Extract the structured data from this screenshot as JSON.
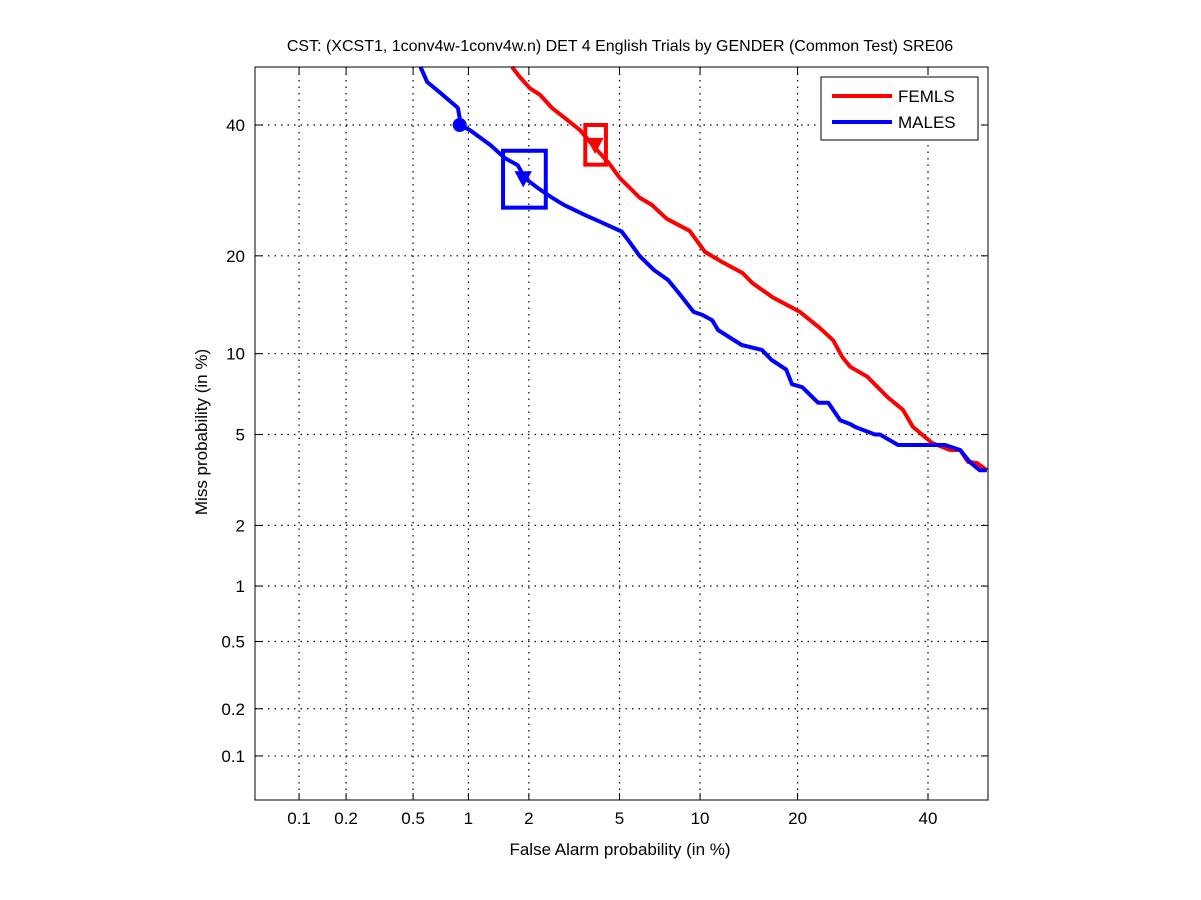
{
  "chart_data": {
    "type": "line",
    "scale": "probit (normal deviate)",
    "title": "CST: (XCST1, 1conv4w-1conv4w.n) DET 4 English Trials by GENDER (Common Test) SRE06",
    "xlabel": "False Alarm probability (in %)",
    "ylabel": "Miss probability (in %)",
    "xlim": [
      0.05,
      50.5
    ],
    "ylim": [
      0.05,
      50.3
    ],
    "grid": true,
    "legend_position": "top-right",
    "xticks": [
      0.1,
      0.2,
      0.5,
      1,
      2,
      5,
      10,
      20,
      40
    ],
    "xtick_labels": [
      "0.1",
      "0.2",
      "0.5",
      "1",
      "2",
      "5",
      "10",
      "20",
      "40"
    ],
    "yticks": [
      0.1,
      0.2,
      0.5,
      1,
      2,
      5,
      10,
      20,
      40
    ],
    "ytick_labels": [
      "0.1",
      "0.2",
      "0.5",
      "1",
      "2",
      "5",
      "10",
      "20",
      "40"
    ],
    "series": [
      {
        "name": "FEMLS",
        "color": "#ff0000",
        "points": [
          [
            1.66,
            50.3
          ],
          [
            1.81,
            48.5
          ],
          [
            2.02,
            46.5
          ],
          [
            2.26,
            45.3
          ],
          [
            2.56,
            43
          ],
          [
            2.93,
            41.2
          ],
          [
            3.42,
            39.1
          ],
          [
            3.96,
            36.1
          ],
          [
            4.49,
            33.7
          ],
          [
            5.03,
            31.1
          ],
          [
            5.6,
            29.3
          ],
          [
            6.0,
            28.1
          ],
          [
            6.7,
            27
          ],
          [
            7.6,
            25
          ],
          [
            9.2,
            23.3
          ],
          [
            10.4,
            20.5
          ],
          [
            11.9,
            19.2
          ],
          [
            13.8,
            17.9
          ],
          [
            14.8,
            16.75
          ],
          [
            17,
            15.2
          ],
          [
            20.3,
            13.7
          ],
          [
            22.9,
            12.2
          ],
          [
            24.8,
            11.1
          ],
          [
            26.1,
            9.75
          ],
          [
            27.3,
            9.0
          ],
          [
            29.9,
            8.3
          ],
          [
            33.1,
            7.0
          ],
          [
            35.7,
            6.25
          ],
          [
            37.4,
            5.36
          ],
          [
            40.7,
            4.62
          ],
          [
            43.9,
            4.32
          ],
          [
            45.7,
            4.32
          ],
          [
            47.1,
            3.85
          ],
          [
            48.7,
            3.81
          ],
          [
            50.5,
            3.55
          ]
        ],
        "actual_dcf_point": [
          3.96,
          36.6
        ],
        "confidence_box": {
          "fa": [
            3.6,
            4.4
          ],
          "miss": [
            33.3,
            40.0
          ]
        }
      },
      {
        "name": "MALES",
        "color": "#0000ff",
        "points": [
          [
            0.55,
            50.3
          ],
          [
            0.6,
            47.6
          ],
          [
            0.7,
            45.8
          ],
          [
            0.88,
            43
          ],
          [
            0.9,
            41.2
          ],
          [
            0.9,
            40
          ],
          [
            1.02,
            39.1
          ],
          [
            1.29,
            36.6
          ],
          [
            1.53,
            34.4
          ],
          [
            1.77,
            33.2
          ],
          [
            1.92,
            31.1
          ],
          [
            2.2,
            29.6
          ],
          [
            2.56,
            28.1
          ],
          [
            2.9,
            27
          ],
          [
            3.6,
            25.5
          ],
          [
            4.2,
            24.5
          ],
          [
            5.1,
            23.2
          ],
          [
            5.4,
            22.1
          ],
          [
            6.0,
            20
          ],
          [
            6.8,
            18.3
          ],
          [
            7.7,
            17.1
          ],
          [
            8.5,
            15.5
          ],
          [
            9.5,
            13.7
          ],
          [
            10.2,
            13.4
          ],
          [
            11,
            12.9
          ],
          [
            11.5,
            12
          ],
          [
            13.7,
            10.7
          ],
          [
            15.8,
            10.3
          ],
          [
            16.9,
            9.5
          ],
          [
            18.6,
            8.8
          ],
          [
            19.3,
            7.8
          ],
          [
            20.6,
            7.6
          ],
          [
            21.9,
            7.0
          ],
          [
            22.7,
            6.65
          ],
          [
            24.1,
            6.65
          ],
          [
            25.8,
            5.7
          ],
          [
            27.3,
            5.5
          ],
          [
            28,
            5.36
          ],
          [
            31.1,
            5.0
          ],
          [
            31.9,
            5.0
          ],
          [
            34.9,
            4.53
          ],
          [
            37.8,
            4.53
          ],
          [
            43,
            4.53
          ],
          [
            45.7,
            4.32
          ],
          [
            47.4,
            3.85
          ],
          [
            49.2,
            3.55
          ],
          [
            50.5,
            3.55
          ]
        ],
        "min_dcf_point": [
          0.9,
          40
        ],
        "actual_dcf_point": [
          1.88,
          31.1
        ],
        "confidence_box": {
          "fa": [
            1.5,
            2.4
          ],
          "miss": [
            26.6,
            35.6
          ]
        }
      }
    ]
  }
}
